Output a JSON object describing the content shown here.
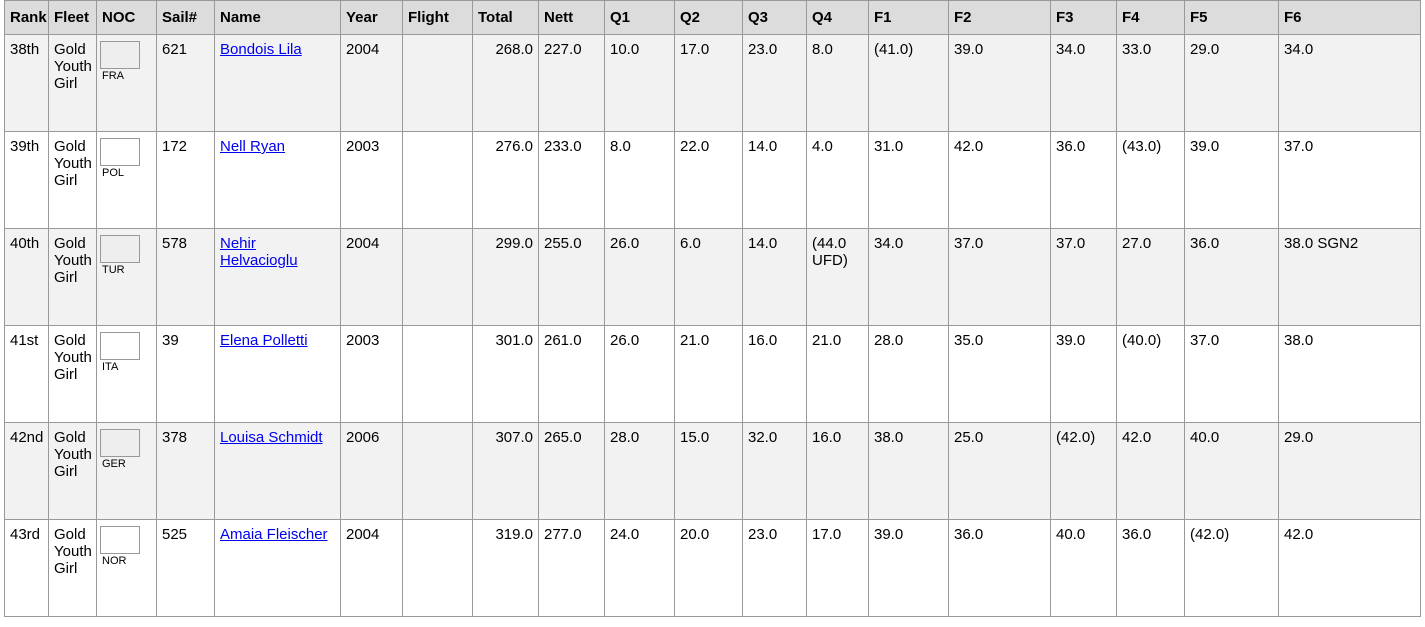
{
  "table": {
    "headers": [
      "Rank",
      "Fleet",
      "NOC",
      "Sail#",
      "Name",
      "Year",
      "Flight",
      "Total",
      "Nett",
      "Q1",
      "Q2",
      "Q3",
      "Q4",
      "F1",
      "F2",
      "F3",
      "F4",
      "F5",
      "F6"
    ],
    "rows": [
      {
        "rank": "38th",
        "fleet": "Gold Youth Girl",
        "noc": "FRA",
        "sail": "621",
        "name": "Bondois Lila",
        "year": "2004",
        "total": "268.0",
        "nett": "227.0",
        "q": [
          "10.0",
          "17.0",
          "23.0",
          "8.0"
        ],
        "f": [
          "(41.0)",
          "39.0",
          "34.0",
          "33.0",
          "29.0",
          "34.0"
        ]
      },
      {
        "rank": "39th",
        "fleet": "Gold Youth Girl",
        "noc": "POL",
        "sail": "172",
        "name": "Nell Ryan",
        "year": "2003",
        "total": "276.0",
        "nett": "233.0",
        "q": [
          "8.0",
          "22.0",
          "14.0",
          "4.0"
        ],
        "f": [
          "31.0",
          "42.0",
          "36.0",
          "(43.0)",
          "39.0",
          "37.0"
        ]
      },
      {
        "rank": "40th",
        "fleet": "Gold Youth Girl",
        "noc": "TUR",
        "sail": "578",
        "name": "Nehir Helvacioglu",
        "year": "2004",
        "total": "299.0",
        "nett": "255.0",
        "q": [
          "26.0",
          "6.0",
          "14.0",
          "(44.0 UFD)"
        ],
        "f": [
          "34.0",
          "37.0",
          "37.0",
          "27.0",
          "36.0",
          "38.0 SGN2"
        ]
      },
      {
        "rank": "41st",
        "fleet": "Gold Youth Girl",
        "noc": "ITA",
        "sail": "39",
        "name": "Elena Polletti",
        "year": "2003",
        "total": "301.0",
        "nett": "261.0",
        "q": [
          "26.0",
          "21.0",
          "16.0",
          "21.0"
        ],
        "f": [
          "28.0",
          "35.0",
          "39.0",
          "(40.0)",
          "37.0",
          "38.0"
        ]
      },
      {
        "rank": "42nd",
        "fleet": "Gold Youth Girl",
        "noc": "GER",
        "sail": "378",
        "name": "Louisa Schmidt",
        "year": "2006",
        "total": "307.0",
        "nett": "265.0",
        "q": [
          "28.0",
          "15.0",
          "32.0",
          "16.0"
        ],
        "f": [
          "38.0",
          "25.0",
          "(42.0)",
          "42.0",
          "40.0",
          "29.0"
        ]
      },
      {
        "rank": "43rd",
        "fleet": "Gold Youth Girl",
        "noc": "NOR",
        "sail": "525",
        "name": "Amaia Fleischer",
        "year": "2004",
        "total": "319.0",
        "nett": "277.0",
        "q": [
          "24.0",
          "20.0",
          "23.0",
          "17.0"
        ],
        "f": [
          "39.0",
          "36.0",
          "40.0",
          "36.0",
          "(42.0)",
          "42.0"
        ]
      }
    ]
  }
}
